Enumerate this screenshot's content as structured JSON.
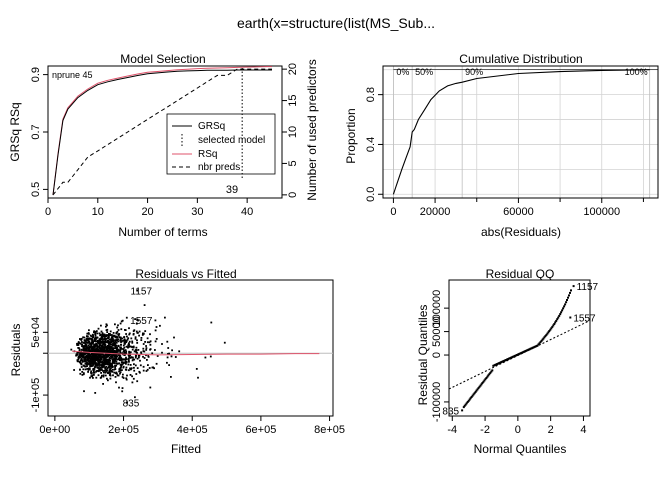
{
  "main_title": "earth(x=structure(list(MS_Sub...",
  "colors": {
    "rsq": "#DF536B",
    "grid": "#D3D3D3",
    "ref": "#BEBEBE"
  },
  "chart_data": [
    {
      "type": "line",
      "id": "model_selection",
      "title": "Model Selection",
      "xlabel": "Number of terms",
      "ylabel": "GRSq   RSq",
      "ylabel2": "Number of used predictors",
      "xlim": [
        0,
        47
      ],
      "ylim": [
        0.47,
        0.93
      ],
      "y2lim": [
        -0.5,
        20.5
      ],
      "x_ticks": [
        0,
        10,
        20,
        30,
        40
      ],
      "y_ticks": [
        0.5,
        0.7,
        0.9
      ],
      "y2_ticks": [
        0,
        5,
        10,
        15,
        20
      ],
      "nprune_label": "nprune 45",
      "selected_model": 39,
      "selected_label": "39",
      "legend": {
        "position": "right",
        "entries": [
          "GRSq",
          "selected model",
          "RSq",
          "nbr preds"
        ]
      },
      "series": [
        {
          "name": "GRSq",
          "x": [
            1,
            2,
            3,
            4,
            5,
            6,
            8,
            10,
            12,
            14,
            16,
            18,
            20,
            22,
            24,
            26,
            28,
            30,
            32,
            34,
            36,
            38,
            40,
            42,
            44,
            45
          ],
          "y": [
            0.48,
            0.62,
            0.74,
            0.78,
            0.8,
            0.82,
            0.845,
            0.865,
            0.875,
            0.883,
            0.89,
            0.897,
            0.903,
            0.906,
            0.909,
            0.912,
            0.913,
            0.914,
            0.915,
            0.915,
            0.915,
            0.916,
            0.916,
            0.916,
            0.916,
            0.916
          ]
        },
        {
          "name": "RSq",
          "x": [
            1,
            2,
            3,
            4,
            5,
            6,
            8,
            10,
            12,
            14,
            16,
            18,
            20,
            22,
            24,
            26,
            28,
            30,
            32,
            34,
            36,
            38,
            40,
            42,
            44,
            45
          ],
          "y": [
            0.48,
            0.625,
            0.745,
            0.785,
            0.805,
            0.825,
            0.85,
            0.87,
            0.88,
            0.888,
            0.895,
            0.902,
            0.908,
            0.911,
            0.914,
            0.917,
            0.919,
            0.921,
            0.922,
            0.923,
            0.924,
            0.925,
            0.926,
            0.927,
            0.928,
            0.928
          ]
        },
        {
          "name": "nbr preds",
          "x": [
            1,
            2,
            3,
            4,
            5,
            6,
            8,
            10,
            12,
            14,
            16,
            18,
            20,
            22,
            24,
            26,
            28,
            30,
            32,
            34,
            36,
            38,
            40,
            42,
            44,
            45
          ],
          "y": [
            0,
            1,
            2,
            2,
            3,
            4,
            6,
            7,
            8,
            9,
            10,
            11,
            12,
            13,
            14,
            15,
            16,
            17,
            18,
            19,
            19,
            20,
            20,
            20,
            20,
            20
          ]
        }
      ]
    },
    {
      "type": "line",
      "id": "cumulative_distribution",
      "title": "Cumulative Distribution",
      "xlabel": "abs(Residuals)",
      "ylabel": "Proportion",
      "xlim": [
        -5000,
        127000
      ],
      "ylim": [
        -0.03,
        1.03
      ],
      "x_ticks": [
        0,
        20000,
        60000,
        100000
      ],
      "x_tick_labels": [
        "0",
        "20000",
        "60000",
        "100000"
      ],
      "x_minor_ticks": [
        40000,
        80000,
        120000
      ],
      "y_ticks": [
        0.0,
        0.4,
        0.8
      ],
      "percentile_labels": [
        {
          "label": "0%",
          "x": 0
        },
        {
          "label": "50%",
          "x": 9000
        },
        {
          "label": "90%",
          "x": 33000
        },
        {
          "label": "100%",
          "x": 123000
        }
      ],
      "series": [
        {
          "name": "",
          "x": [
            0,
            1000,
            2000,
            4000,
            6000,
            8000,
            9000,
            10000,
            12000,
            15000,
            18000,
            22000,
            26000,
            30000,
            33000,
            40000,
            50000,
            60000,
            80000,
            100000,
            123000
          ],
          "y": [
            0,
            0.05,
            0.1,
            0.2,
            0.29,
            0.38,
            0.5,
            0.52,
            0.6,
            0.68,
            0.76,
            0.83,
            0.87,
            0.89,
            0.9,
            0.93,
            0.95,
            0.97,
            0.985,
            0.995,
            1.0
          ]
        }
      ]
    },
    {
      "type": "scatter",
      "id": "residuals_vs_fitted",
      "title": "Residuals vs Fitted",
      "xlabel": "Fitted",
      "ylabel": "Residuals",
      "xlim": [
        -20000,
        810000
      ],
      "ylim": [
        -150000,
        175000
      ],
      "x_ticks": [
        0,
        200000,
        400000,
        600000,
        800000
      ],
      "x_tick_labels": [
        "0e+00",
        "2e+05",
        "4e+05",
        "6e+05",
        "8e+05"
      ],
      "y_ticks": [
        -100000,
        0,
        50000
      ],
      "y_tick_labels": [
        "-1e+05",
        "",
        "5e+04"
      ],
      "n_points": 1460,
      "labeled_points": [
        {
          "label": "1157",
          "x": 240000,
          "y": 150000
        },
        {
          "label": "1557",
          "x": 240000,
          "y": 80000
        },
        {
          "label": "835",
          "x": 210000,
          "y": -118000
        }
      ],
      "smooth": {
        "x": [
          50000,
          100000,
          150000,
          200000,
          250000,
          300000,
          400000,
          500000,
          600000,
          700000,
          770000
        ],
        "y": [
          5000,
          2000,
          0,
          -2000,
          -3000,
          -4000,
          -3000,
          -2000,
          -2000,
          -1000,
          -1000
        ]
      }
    },
    {
      "type": "scatter",
      "id": "residual_qq",
      "title": "Residual QQ",
      "xlabel": "Normal Quantiles",
      "ylabel": "Residual Quantiles",
      "xlim": [
        -4.2,
        4.4
      ],
      "ylim": [
        -130000,
        160000
      ],
      "x_ticks": [
        -4,
        -2,
        0,
        2,
        4
      ],
      "y_ticks": [
        -100000,
        0,
        50000,
        100000
      ],
      "y_tick_labels": [
        "-100000",
        "0",
        "50000",
        "100000"
      ],
      "labeled_points": [
        {
          "label": "1157",
          "x": 3.4,
          "y": 147000
        },
        {
          "label": "1557",
          "x": 3.2,
          "y": 80000
        },
        {
          "label": "835",
          "x": -3.4,
          "y": -118000
        }
      ],
      "ref_line": {
        "intercept": -1000,
        "slope": 17000
      }
    }
  ]
}
